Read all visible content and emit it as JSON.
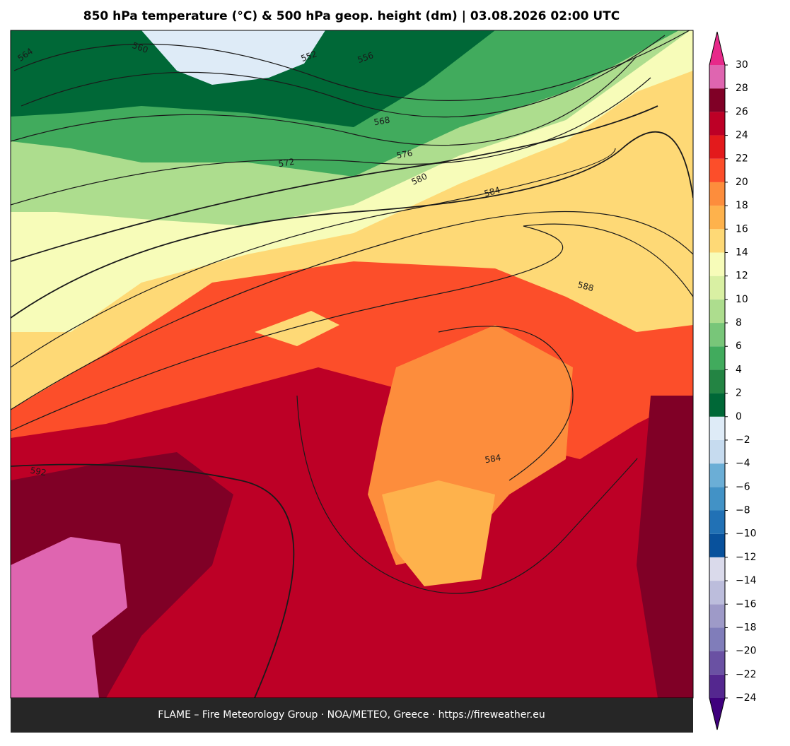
{
  "title": "850 hPa temperature (°C) & 500 hPa geop. height (dm)  |  03.08.2026 02:00 UTC",
  "contour_labels": [
    "564",
    "560",
    "552",
    "556",
    "568",
    "572",
    "576",
    "580",
    "584",
    "588",
    "592",
    "584"
  ],
  "colorbar": {
    "ticks": [
      {
        "value": -24,
        "label": "−24"
      },
      {
        "value": -22,
        "label": "−22"
      },
      {
        "value": -20,
        "label": "−20"
      },
      {
        "value": -18,
        "label": "−18"
      },
      {
        "value": -16,
        "label": "−16"
      },
      {
        "value": -14,
        "label": "−14"
      },
      {
        "value": -12,
        "label": "−12"
      },
      {
        "value": -10,
        "label": "−10"
      },
      {
        "value": -8,
        "label": "−8"
      },
      {
        "value": -6,
        "label": "−6"
      },
      {
        "value": -4,
        "label": "−4"
      },
      {
        "value": -2,
        "label": "−2"
      },
      0,
      2,
      4,
      6,
      8,
      10,
      12,
      14,
      16,
      18,
      20,
      22,
      24,
      26,
      28,
      30
    ],
    "colors": [
      "#54278f",
      "#6a51a3",
      "#807dba",
      "#9e9ac8",
      "#bcbddc",
      "#dadaeb",
      "#08519c",
      "#2171b5",
      "#4292c6",
      "#6baed6",
      "#c6dbef",
      "#deebf7",
      "#006837",
      "#238443",
      "#41ab5d",
      "#78c679",
      "#addd8e",
      "#d9f0a3",
      "#f7fcb9",
      "#fed976",
      "#feb24c",
      "#fd8d3c",
      "#fc4e2a",
      "#e31a1c",
      "#bd0026",
      "#800026",
      "#df65b0"
    ],
    "under_color": "#3f007d",
    "over_color": "#e7298a"
  },
  "footer": "FLAME – Fire Meteorology Group · NOA/METEO, Greece · https://fireweather.eu"
}
